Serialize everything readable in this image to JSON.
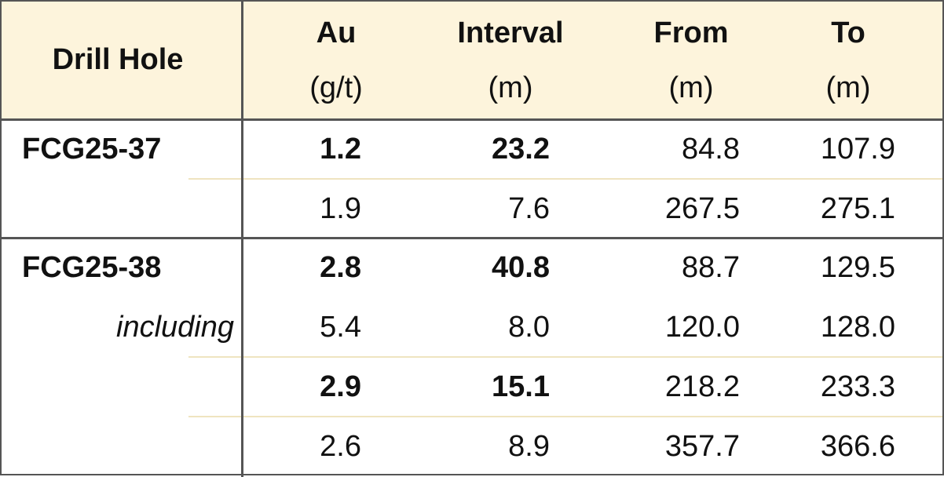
{
  "table": {
    "header": [
      {
        "lines": [
          "Drill Hole"
        ]
      },
      {
        "lines": [
          "Au",
          "(g/t)"
        ]
      },
      {
        "lines": [
          "Interval",
          "(m)"
        ]
      },
      {
        "lines": [
          "From",
          "(m)"
        ]
      },
      {
        "lines": [
          "To",
          "(m)"
        ]
      }
    ],
    "rows": [
      {
        "hole": "FCG25-37",
        "bold": true,
        "cells": [
          "1.2",
          "23.2",
          "84.8",
          "107.9"
        ]
      },
      {
        "bold": false,
        "cells": [
          "1.9",
          "7.6",
          "267.5",
          "275.1"
        ]
      },
      {
        "hole": "FCG25-38",
        "bold": true,
        "cells": [
          "2.8",
          "40.8",
          "88.7",
          "129.5"
        ]
      },
      {
        "note": "including",
        "bold": false,
        "cells": [
          "5.4",
          "8.0",
          "120.0",
          "128.0"
        ]
      },
      {
        "bold": true,
        "cells": [
          "2.9",
          "15.1",
          "218.2",
          "233.3"
        ]
      },
      {
        "bold": false,
        "cells": [
          "2.6",
          "8.9",
          "357.7",
          "366.6"
        ]
      }
    ]
  }
}
